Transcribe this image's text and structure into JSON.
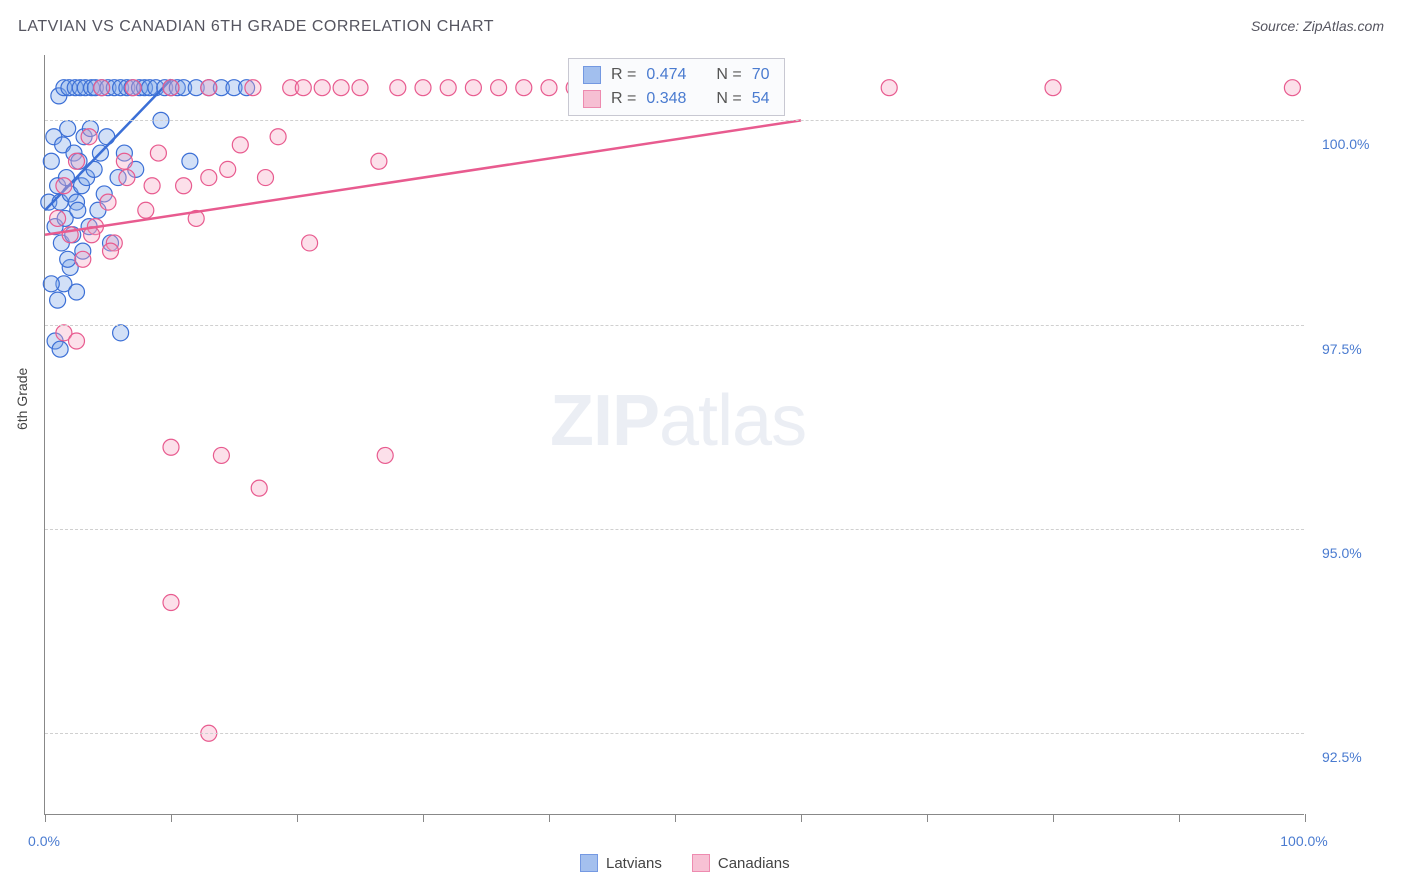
{
  "title": "LATVIAN VS CANADIAN 6TH GRADE CORRELATION CHART",
  "source_prefix": "Source: ",
  "source": "ZipAtlas.com",
  "y_axis_title": "6th Grade",
  "watermark_bold": "ZIP",
  "watermark_light": "atlas",
  "chart": {
    "type": "scatter",
    "xlim": [
      0,
      100
    ],
    "ylim": [
      91.5,
      100.8
    ],
    "x_ticks": [
      0,
      10,
      20,
      30,
      40,
      50,
      60,
      70,
      80,
      90,
      100
    ],
    "x_tick_labels": {
      "0": "0.0%",
      "100": "100.0%"
    },
    "y_ticks": [
      92.5,
      95.0,
      97.5,
      100.0
    ],
    "y_tick_labels": {
      "92.5": "92.5%",
      "95.0": "95.0%",
      "97.5": "97.5%",
      "100.0": "100.0%"
    },
    "grid_color": "#d0d0d0",
    "background_color": "#ffffff",
    "axis_color": "#888888",
    "tick_label_color": "#4a7bd0",
    "point_radius": 8,
    "point_stroke_width": 1.2,
    "point_fill_opacity": 0.35,
    "regression_line_width": 2.5
  },
  "series": [
    {
      "name": "Latvians",
      "color_stroke": "#3b6fd6",
      "color_fill": "#7ea6e8",
      "r_label": "R = ",
      "r_value": "0.474",
      "n_label": "N = ",
      "n_value": "70",
      "regression": {
        "x1": 0,
        "y1": 98.9,
        "x2": 10,
        "y2": 100.5
      },
      "points": [
        [
          0.3,
          99.0
        ],
        [
          0.5,
          99.5
        ],
        [
          0.7,
          99.8
        ],
        [
          0.8,
          98.7
        ],
        [
          1.0,
          99.2
        ],
        [
          1.1,
          100.3
        ],
        [
          1.2,
          99.0
        ],
        [
          1.3,
          98.5
        ],
        [
          1.4,
          99.7
        ],
        [
          1.5,
          100.4
        ],
        [
          1.6,
          98.8
        ],
        [
          1.7,
          99.3
        ],
        [
          1.8,
          99.9
        ],
        [
          1.9,
          100.4
        ],
        [
          2.0,
          99.1
        ],
        [
          2.2,
          98.6
        ],
        [
          2.3,
          99.6
        ],
        [
          2.4,
          100.4
        ],
        [
          2.5,
          99.0
        ],
        [
          2.6,
          98.9
        ],
        [
          2.7,
          99.5
        ],
        [
          2.8,
          100.4
        ],
        [
          2.9,
          99.2
        ],
        [
          3.0,
          98.4
        ],
        [
          3.1,
          99.8
        ],
        [
          3.2,
          100.4
        ],
        [
          3.3,
          99.3
        ],
        [
          3.5,
          98.7
        ],
        [
          3.6,
          99.9
        ],
        [
          3.7,
          100.4
        ],
        [
          3.9,
          99.4
        ],
        [
          4.0,
          100.4
        ],
        [
          4.2,
          98.9
        ],
        [
          4.4,
          99.6
        ],
        [
          4.5,
          100.4
        ],
        [
          4.7,
          99.1
        ],
        [
          4.9,
          99.8
        ],
        [
          5.0,
          100.4
        ],
        [
          5.2,
          98.5
        ],
        [
          5.5,
          100.4
        ],
        [
          5.8,
          99.3
        ],
        [
          6.0,
          100.4
        ],
        [
          6.3,
          99.6
        ],
        [
          6.5,
          100.4
        ],
        [
          6.9,
          100.4
        ],
        [
          7.2,
          99.4
        ],
        [
          7.5,
          100.4
        ],
        [
          7.9,
          100.4
        ],
        [
          8.3,
          100.4
        ],
        [
          8.8,
          100.4
        ],
        [
          9.2,
          100.0
        ],
        [
          9.5,
          100.4
        ],
        [
          10.0,
          100.4
        ],
        [
          10.5,
          100.4
        ],
        [
          11.0,
          100.4
        ],
        [
          11.5,
          99.5
        ],
        [
          12.0,
          100.4
        ],
        [
          13.0,
          100.4
        ],
        [
          14.0,
          100.4
        ],
        [
          15.0,
          100.4
        ],
        [
          0.8,
          97.3
        ],
        [
          1.0,
          97.8
        ],
        [
          1.5,
          98.0
        ],
        [
          2.0,
          98.2
        ],
        [
          2.5,
          97.9
        ],
        [
          1.8,
          98.3
        ],
        [
          6.0,
          97.4
        ],
        [
          1.2,
          97.2
        ],
        [
          0.5,
          98.0
        ],
        [
          16.0,
          100.4
        ]
      ]
    },
    {
      "name": "Canadians",
      "color_stroke": "#e85b8f",
      "color_fill": "#f5a7c2",
      "r_label": "R = ",
      "r_value": "0.348",
      "n_label": "N = ",
      "n_value": "54",
      "regression": {
        "x1": 0,
        "y1": 98.6,
        "x2": 60,
        "y2": 100.0
      },
      "points": [
        [
          1.0,
          98.8
        ],
        [
          1.5,
          99.2
        ],
        [
          2.0,
          98.6
        ],
        [
          2.5,
          99.5
        ],
        [
          3.0,
          98.3
        ],
        [
          3.5,
          99.8
        ],
        [
          4.0,
          98.7
        ],
        [
          4.5,
          100.4
        ],
        [
          5.0,
          99.0
        ],
        [
          5.5,
          98.5
        ],
        [
          6.5,
          99.3
        ],
        [
          7.0,
          100.4
        ],
        [
          8.0,
          98.9
        ],
        [
          9.0,
          99.6
        ],
        [
          10.0,
          100.4
        ],
        [
          11.0,
          99.2
        ],
        [
          12.0,
          98.8
        ],
        [
          13.0,
          100.4
        ],
        [
          14.5,
          99.4
        ],
        [
          15.5,
          99.7
        ],
        [
          16.5,
          100.4
        ],
        [
          17.5,
          99.3
        ],
        [
          18.5,
          99.8
        ],
        [
          19.5,
          100.4
        ],
        [
          20.5,
          100.4
        ],
        [
          13.0,
          99.3
        ],
        [
          22.0,
          100.4
        ],
        [
          23.5,
          100.4
        ],
        [
          25.0,
          100.4
        ],
        [
          26.5,
          99.5
        ],
        [
          28.0,
          100.4
        ],
        [
          30.0,
          100.4
        ],
        [
          32.0,
          100.4
        ],
        [
          34.0,
          100.4
        ],
        [
          36.0,
          100.4
        ],
        [
          38.0,
          100.4
        ],
        [
          40.0,
          100.4
        ],
        [
          42.0,
          100.4
        ],
        [
          21.0,
          98.5
        ],
        [
          10.0,
          96.0
        ],
        [
          14.0,
          95.9
        ],
        [
          27.0,
          95.9
        ],
        [
          17.0,
          95.5
        ],
        [
          10.0,
          94.1
        ],
        [
          13.0,
          92.5
        ],
        [
          1.5,
          97.4
        ],
        [
          2.5,
          97.3
        ],
        [
          67.0,
          100.4
        ],
        [
          80.0,
          100.4
        ],
        [
          99.0,
          100.4
        ],
        [
          3.7,
          98.6
        ],
        [
          5.2,
          98.4
        ],
        [
          6.3,
          99.5
        ],
        [
          8.5,
          99.2
        ]
      ]
    }
  ]
}
